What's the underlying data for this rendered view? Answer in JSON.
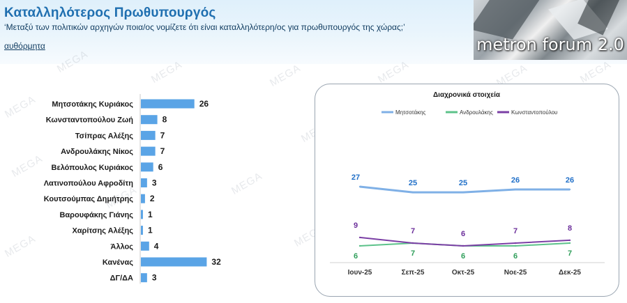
{
  "header": {
    "title": "Καταλληλότερος Πρωθυπουργός",
    "question": "‘Μεταξύ των πολιτικών αρχηγών ποια/ος νομίζετε ότι είναι καταλληλότερη/ος για πρωθυπουργός της χώρας;’",
    "method": "αυθόρμητα"
  },
  "logo": {
    "text": "metron forum 2.0"
  },
  "watermark": {
    "text": "MEGA"
  },
  "colors": {
    "bar": "#5aa4e6",
    "mitsotakis": "#7fb0e6",
    "androulakis": "#5cc28a",
    "konstantopoulou": "#7b3fa5",
    "value_blue": "#1f6fc8",
    "value_green": "#2f9e5a",
    "value_purple": "#6b2e9a"
  },
  "chart_data": [
    {
      "type": "bar",
      "orientation": "horizontal",
      "categories": [
        "Μητσοτάκης Κυριάκος",
        "Κωνσταντοπούλου Ζωή",
        "Τσίπρας Αλέξης",
        "Ανδρουλάκης Νίκος",
        "Βελόπουλος Κυριάκος",
        "Λατινοπούλου Αφροδίτη",
        "Κουτσούμπας Δημήτρης",
        "Βαρουφάκης Γιάνης",
        "Χαρίτσης Αλέξης",
        "Άλλος",
        "Κανένας",
        "ΔΓ/ΔΑ"
      ],
      "values": [
        26,
        8,
        7,
        7,
        6,
        3,
        2,
        1,
        1,
        4,
        32,
        3
      ]
    },
    {
      "type": "line",
      "title": "Διαχρονικά στοιχεία",
      "categories": [
        "Ιουν-25",
        "Σεπ-25",
        "Οκτ-25",
        "Νοε-25",
        "Δεκ-25"
      ],
      "series": [
        {
          "name": "Μητσοτάκης",
          "values": [
            27,
            25,
            25,
            26,
            26
          ]
        },
        {
          "name": "Ανδρουλάκης",
          "values": [
            6,
            7,
            6,
            6,
            7
          ]
        },
        {
          "name": "Κωνσταντοπούλου",
          "values": [
            9,
            7,
            6,
            7,
            8
          ]
        }
      ],
      "legend": "top"
    }
  ]
}
